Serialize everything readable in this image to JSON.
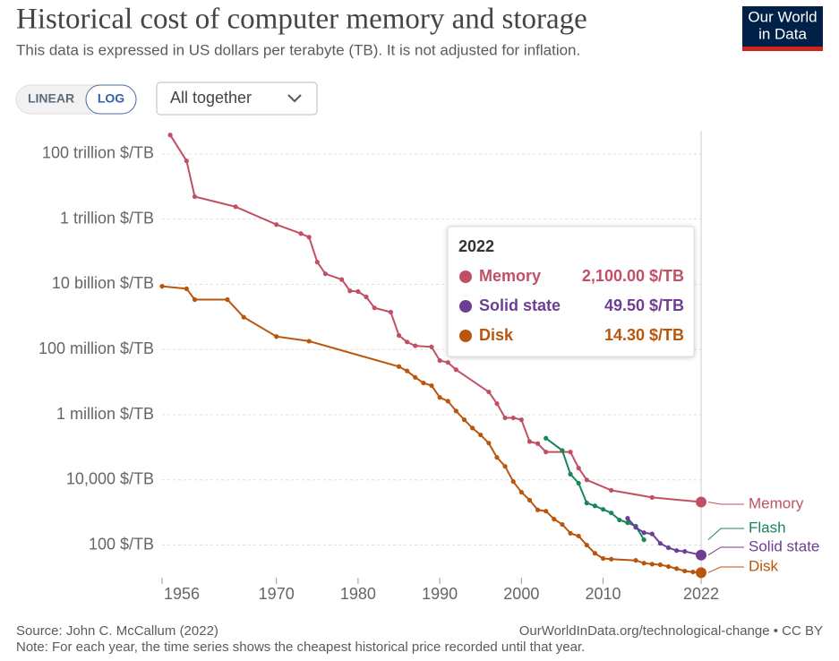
{
  "header": {
    "logo": [
      "Our World",
      "in Data"
    ],
    "buttons": [
      "LINEAR",
      "LOG"
    ],
    "dropdown": "All together"
  },
  "chart_data": {
    "type": "line",
    "title": "Historical cost of computer memory and storage",
    "subtitle": "This data is expressed in US dollars per terabyte (TB). It is not adjusted for inflation.",
    "source": "Source: John C. McCallum (2022)",
    "url": "OurWorldInData.org/technological-change • CC BY",
    "note": "Note: For each year, the time series shows the cheapest historical price recorded until that year.",
    "yscale": "log",
    "grid": true,
    "xlim": [
      1956,
      2022
    ],
    "xticks": [
      1956,
      1970,
      1980,
      1990,
      2000,
      2010,
      2022
    ],
    "ylim": [
      10,
      500000000000000
    ],
    "yticks": [
      {
        "value": 100,
        "label": "100 $/TB"
      },
      {
        "value": 10000,
        "label": "10,000 $/TB"
      },
      {
        "value": 1000000,
        "label": "1 million $/TB"
      },
      {
        "value": 100000000,
        "label": "100 million $/TB"
      },
      {
        "value": 10000000000,
        "label": "10 billion $/TB"
      },
      {
        "value": 1000000000000,
        "label": "1 trillion $/TB"
      },
      {
        "value": 100000000000000,
        "label": "100 trillion $/TB"
      }
    ],
    "series": [
      {
        "name": "Memory",
        "color": "#c15065",
        "x": [
          1957,
          1959,
          1960,
          1965,
          1970,
          1973,
          1974,
          1975,
          1976,
          1978,
          1979,
          1980,
          1981,
          1982,
          1984,
          1985,
          1986,
          1987,
          1989,
          1990,
          1991,
          1992,
          1996,
          1997,
          1998,
          1999,
          2000,
          2001,
          2002,
          2003,
          2006,
          2007,
          2008,
          2011,
          2016,
          2022
        ],
        "values": [
          380000000000000,
          61000000000000,
          4900000000000,
          2400000000000,
          680000000000,
          360000000000,
          280000000000,
          48000000000,
          21000000000,
          14000000000,
          6300000000,
          6000000000,
          4100000000,
          1900000000,
          1400000000,
          270000000,
          170000000,
          130000000,
          120000000,
          46000000,
          40000000,
          24000000,
          5000000,
          2200000,
          800000,
          800000,
          700000,
          150000,
          130000,
          72000,
          72000,
          23000,
          10000,
          4800,
          2900,
          2100
        ]
      },
      {
        "name": "Flash",
        "color": "#18855a",
        "x": [
          2003,
          2005,
          2006,
          2007,
          2008,
          2009,
          2010,
          2011,
          2012,
          2013,
          2014,
          2015
        ],
        "values": [
          190000,
          80000,
          15000,
          7900,
          1950,
          1600,
          1250,
          970,
          590,
          485,
          380,
          146
        ]
      },
      {
        "name": "Solid state",
        "color": "#6d3e91",
        "x": [
          2013,
          2014,
          2015,
          2016,
          2017,
          2018,
          2019,
          2020,
          2022
        ],
        "values": [
          665,
          350,
          240,
          220,
          113,
          83,
          68,
          64,
          49.5
        ]
      },
      {
        "name": "Disk",
        "color": "#b9560c",
        "x": [
          1956,
          1959,
          1960,
          1964,
          1966,
          1970,
          1974,
          1985,
          1986,
          1987,
          1988,
          1989,
          1990,
          1991,
          1992,
          1993,
          1994,
          1995,
          1996,
          1997,
          1998,
          1999,
          2000,
          2001,
          2002,
          2003,
          2004,
          2005,
          2006,
          2007,
          2008,
          2009,
          2010,
          2011,
          2014,
          2015,
          2016,
          2017,
          2018,
          2019,
          2020,
          2021,
          2022
        ],
        "values": [
          8700000000,
          7300000000,
          3400000000,
          3400000000,
          980000000,
          250000000,
          180000000,
          30000000,
          22000000,
          14000000,
          9400000,
          7800000,
          3400000,
          2600000,
          1300000,
          700000,
          390000,
          240000,
          135000,
          49000,
          26000,
          8900,
          4200,
          2400,
          1200,
          1100,
          625,
          430,
          230,
          190,
          100,
          56,
          39,
          37,
          34,
          28,
          26,
          25,
          22,
          19,
          16,
          15,
          14.3
        ]
      }
    ],
    "tooltip": {
      "title": "2022",
      "items": [
        {
          "name": "Memory",
          "label": "2,100.00 $/TB",
          "color": "#c15065"
        },
        {
          "name": "Solid state",
          "label": "49.50 $/TB",
          "color": "#6d3e91"
        },
        {
          "name": "Disk",
          "label": "14.30 $/TB",
          "color": "#b9560c"
        }
      ]
    }
  }
}
